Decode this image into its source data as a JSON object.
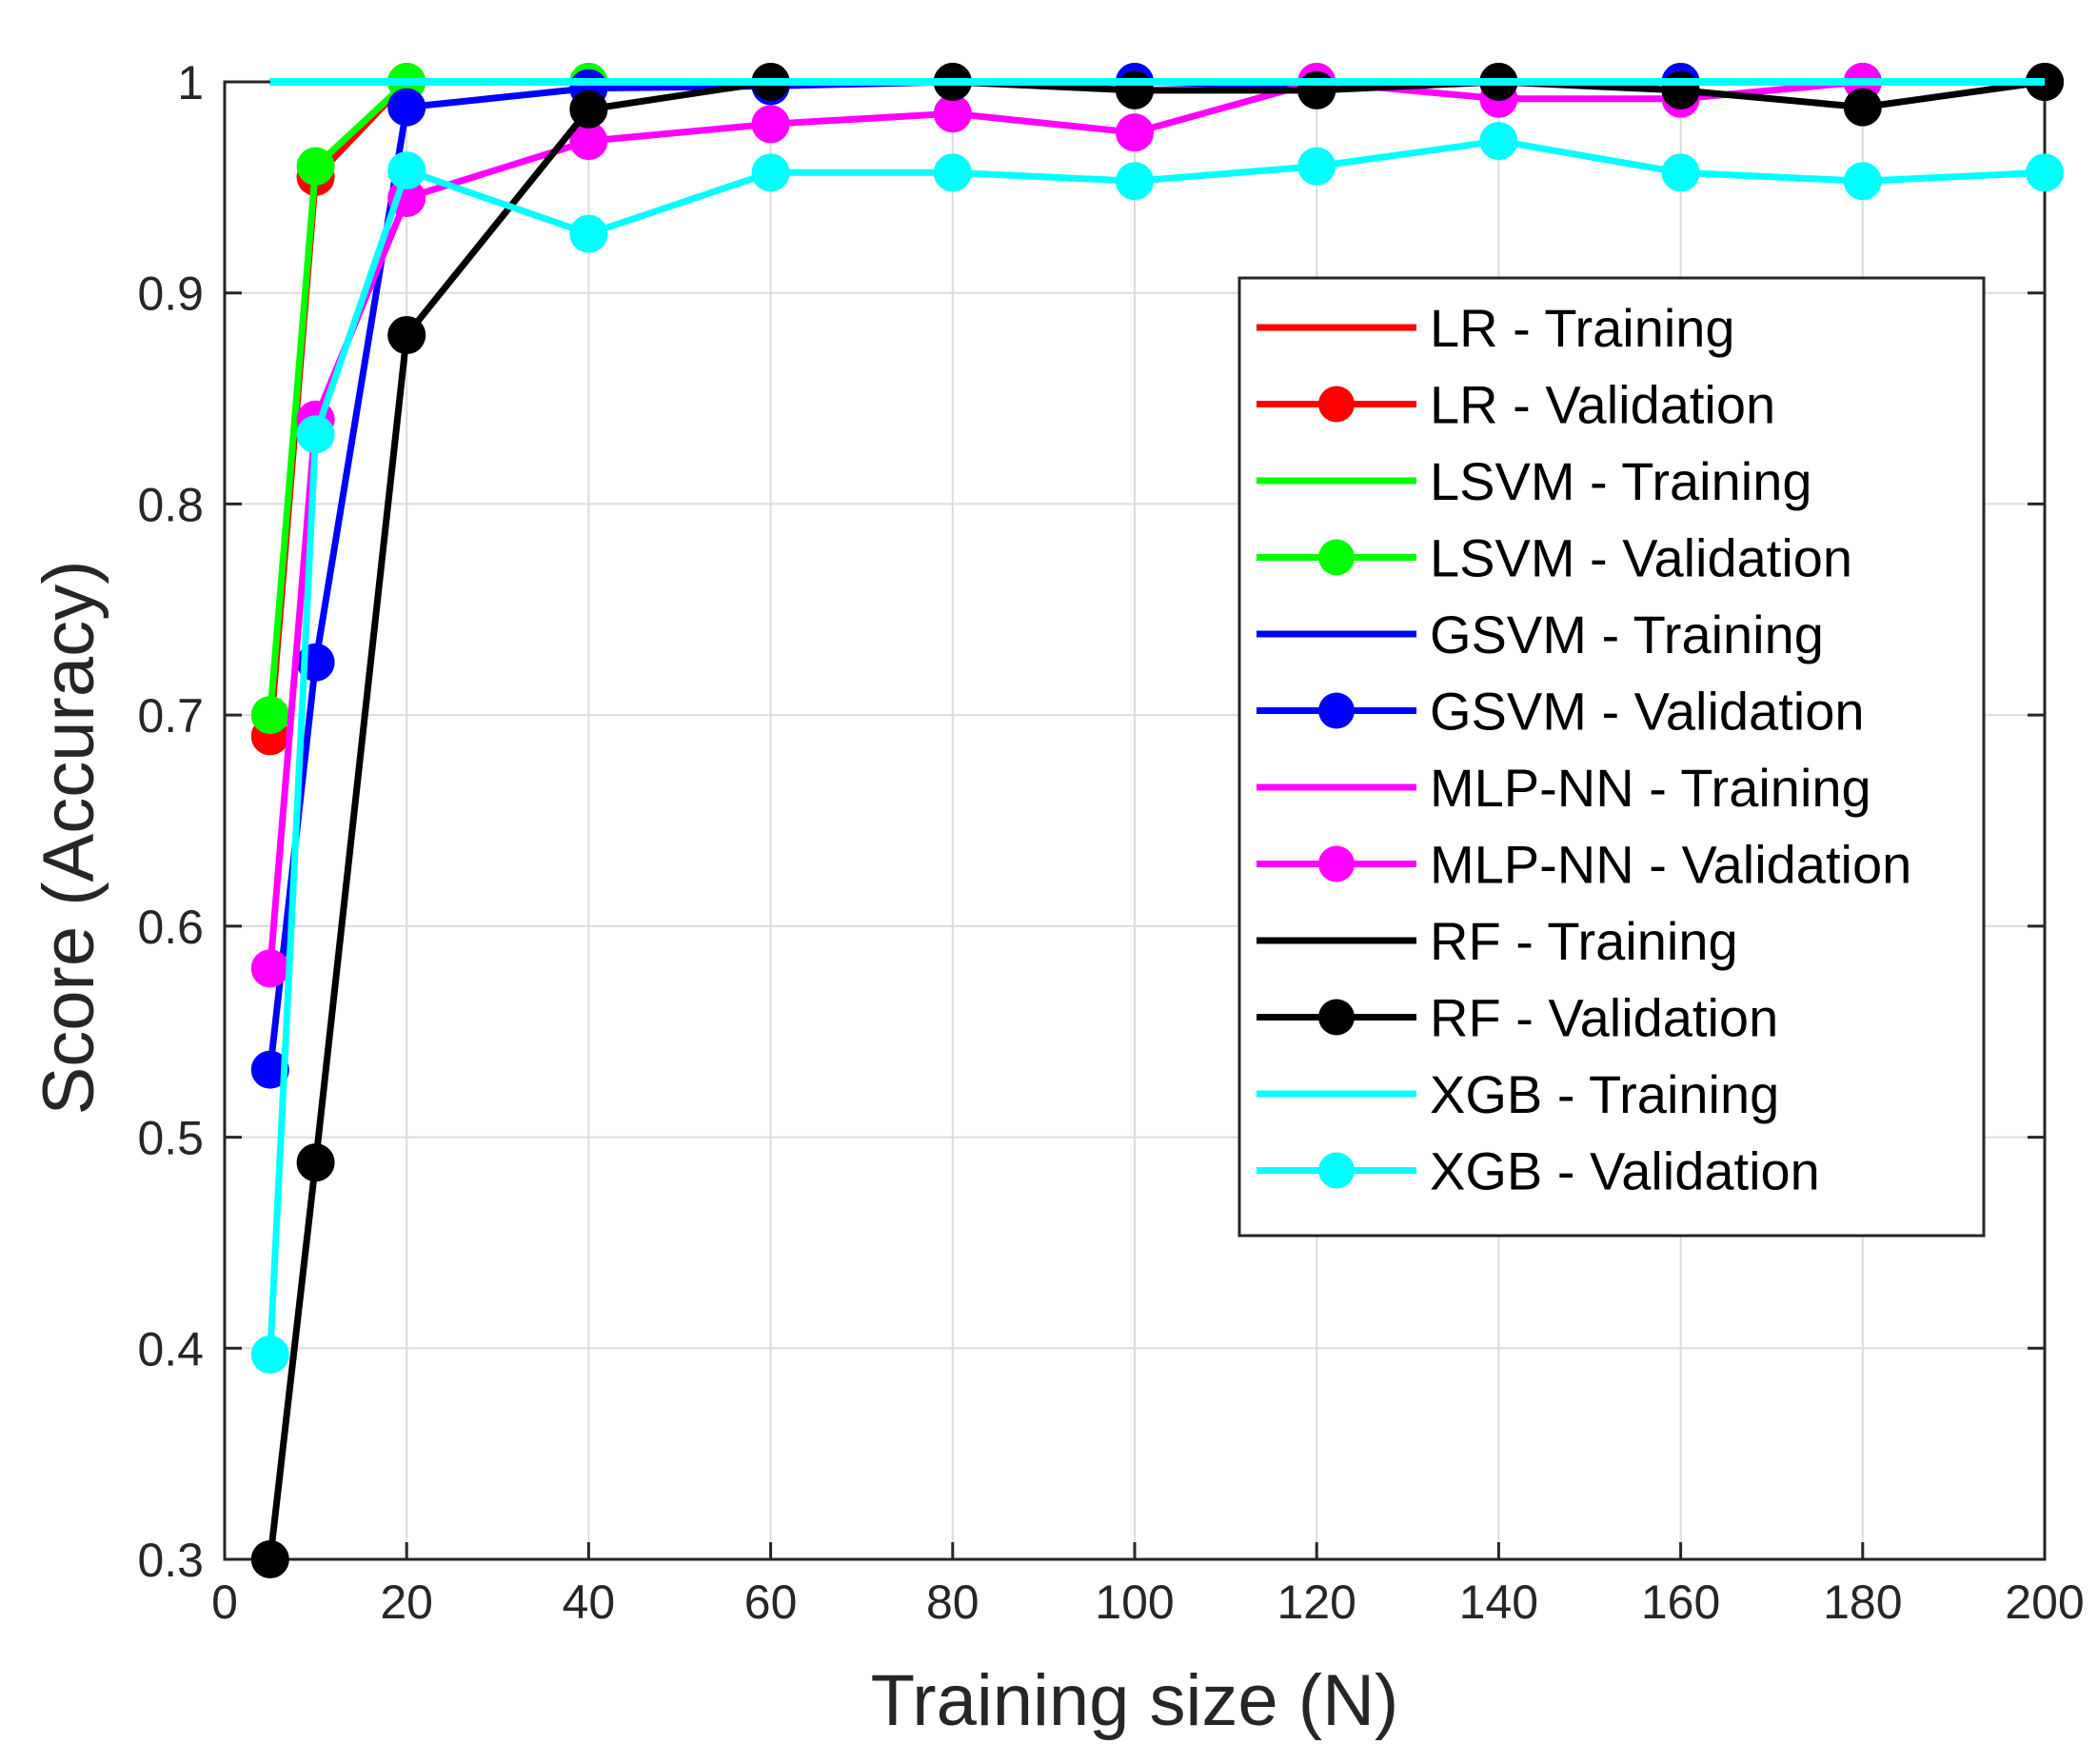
{
  "chart_data": {
    "type": "line",
    "title": "",
    "xlabel": "Training size (N)",
    "ylabel": "Score (Accuracy)",
    "xlim": [
      0,
      200
    ],
    "ylim": [
      0.3,
      1.0
    ],
    "xticks": [
      0,
      20,
      40,
      60,
      80,
      100,
      120,
      140,
      160,
      180,
      200
    ],
    "yticks": [
      0.3,
      0.4,
      0.5,
      0.6,
      0.7,
      0.8,
      0.9,
      1.0
    ],
    "xtick_labels": [
      "0",
      "20",
      "40",
      "60",
      "80",
      "100",
      "120",
      "140",
      "160",
      "180",
      "200"
    ],
    "ytick_labels": [
      "0.3",
      "0.4",
      "0.5",
      "0.6",
      "0.7",
      "0.8",
      "0.9",
      "1"
    ],
    "grid": true,
    "legend_position": "right",
    "x": [
      5,
      10,
      20,
      40,
      60,
      80,
      100,
      120,
      140,
      160,
      180,
      200
    ],
    "series": [
      {
        "name": "LR - Training",
        "color": "#ff0000",
        "marker": false,
        "values": [
          1,
          1,
          1,
          1,
          1,
          1,
          1,
          1,
          1,
          1,
          1,
          1
        ]
      },
      {
        "name": "LR - Validation",
        "color": "#ff0000",
        "marker": true,
        "values": [
          0.69,
          0.955,
          1.0,
          1.0,
          1.0,
          1.0,
          1.0,
          1.0,
          1.0,
          1.0,
          1.0,
          1.0
        ]
      },
      {
        "name": "LSVM - Training",
        "color": "#00ff00",
        "marker": false,
        "values": [
          1,
          1,
          1,
          1,
          1,
          1,
          1,
          1,
          1,
          1,
          1,
          1
        ]
      },
      {
        "name": "LSVM - Validation",
        "color": "#00ff00",
        "marker": true,
        "values": [
          0.7,
          0.96,
          1.0,
          1.0,
          1.0,
          1.0,
          1.0,
          1.0,
          1.0,
          1.0,
          1.0,
          1.0
        ]
      },
      {
        "name": "GSVM - Training",
        "color": "#0000ff",
        "marker": false,
        "values": [
          1,
          1,
          1,
          1,
          1,
          1,
          1,
          1,
          1,
          1,
          1,
          1
        ]
      },
      {
        "name": "GSVM - Validation",
        "color": "#0000ff",
        "marker": true,
        "values": [
          0.532,
          0.725,
          0.988,
          0.997,
          0.998,
          1.0,
          1.0,
          0.998,
          1.0,
          1.0,
          1.0,
          1.0
        ]
      },
      {
        "name": "MLP-NN - Training",
        "color": "#ff00ff",
        "marker": false,
        "values": [
          1,
          1,
          1,
          1,
          1,
          1,
          1,
          1,
          1,
          1,
          1,
          1
        ]
      },
      {
        "name": "MLP-NN - Validation",
        "color": "#ff00ff",
        "marker": true,
        "values": [
          0.58,
          0.84,
          0.945,
          0.972,
          0.98,
          0.985,
          0.976,
          1.0,
          0.992,
          0.992,
          1.0,
          1.0
        ]
      },
      {
        "name": "RF - Training",
        "color": "#000000",
        "marker": false,
        "values": [
          1,
          1,
          1,
          1,
          1,
          1,
          1,
          1,
          1,
          1,
          1,
          1
        ]
      },
      {
        "name": "RF - Validation",
        "color": "#000000",
        "marker": true,
        "values": [
          0.3,
          0.488,
          0.88,
          0.987,
          1.0,
          1.0,
          0.996,
          0.996,
          1.0,
          0.996,
          0.988,
          1.0
        ]
      },
      {
        "name": "XGB - Training",
        "color": "#00ffff",
        "marker": false,
        "values": [
          1,
          1,
          1,
          1,
          1,
          1,
          1,
          1,
          1,
          1,
          1,
          1
        ]
      },
      {
        "name": "XGB - Validation",
        "color": "#00ffff",
        "marker": true,
        "values": [
          0.397,
          0.833,
          0.958,
          0.928,
          0.957,
          0.957,
          0.953,
          0.96,
          0.972,
          0.957,
          0.953,
          0.957
        ]
      }
    ],
    "training_line_x": [
      5,
      200
    ]
  }
}
